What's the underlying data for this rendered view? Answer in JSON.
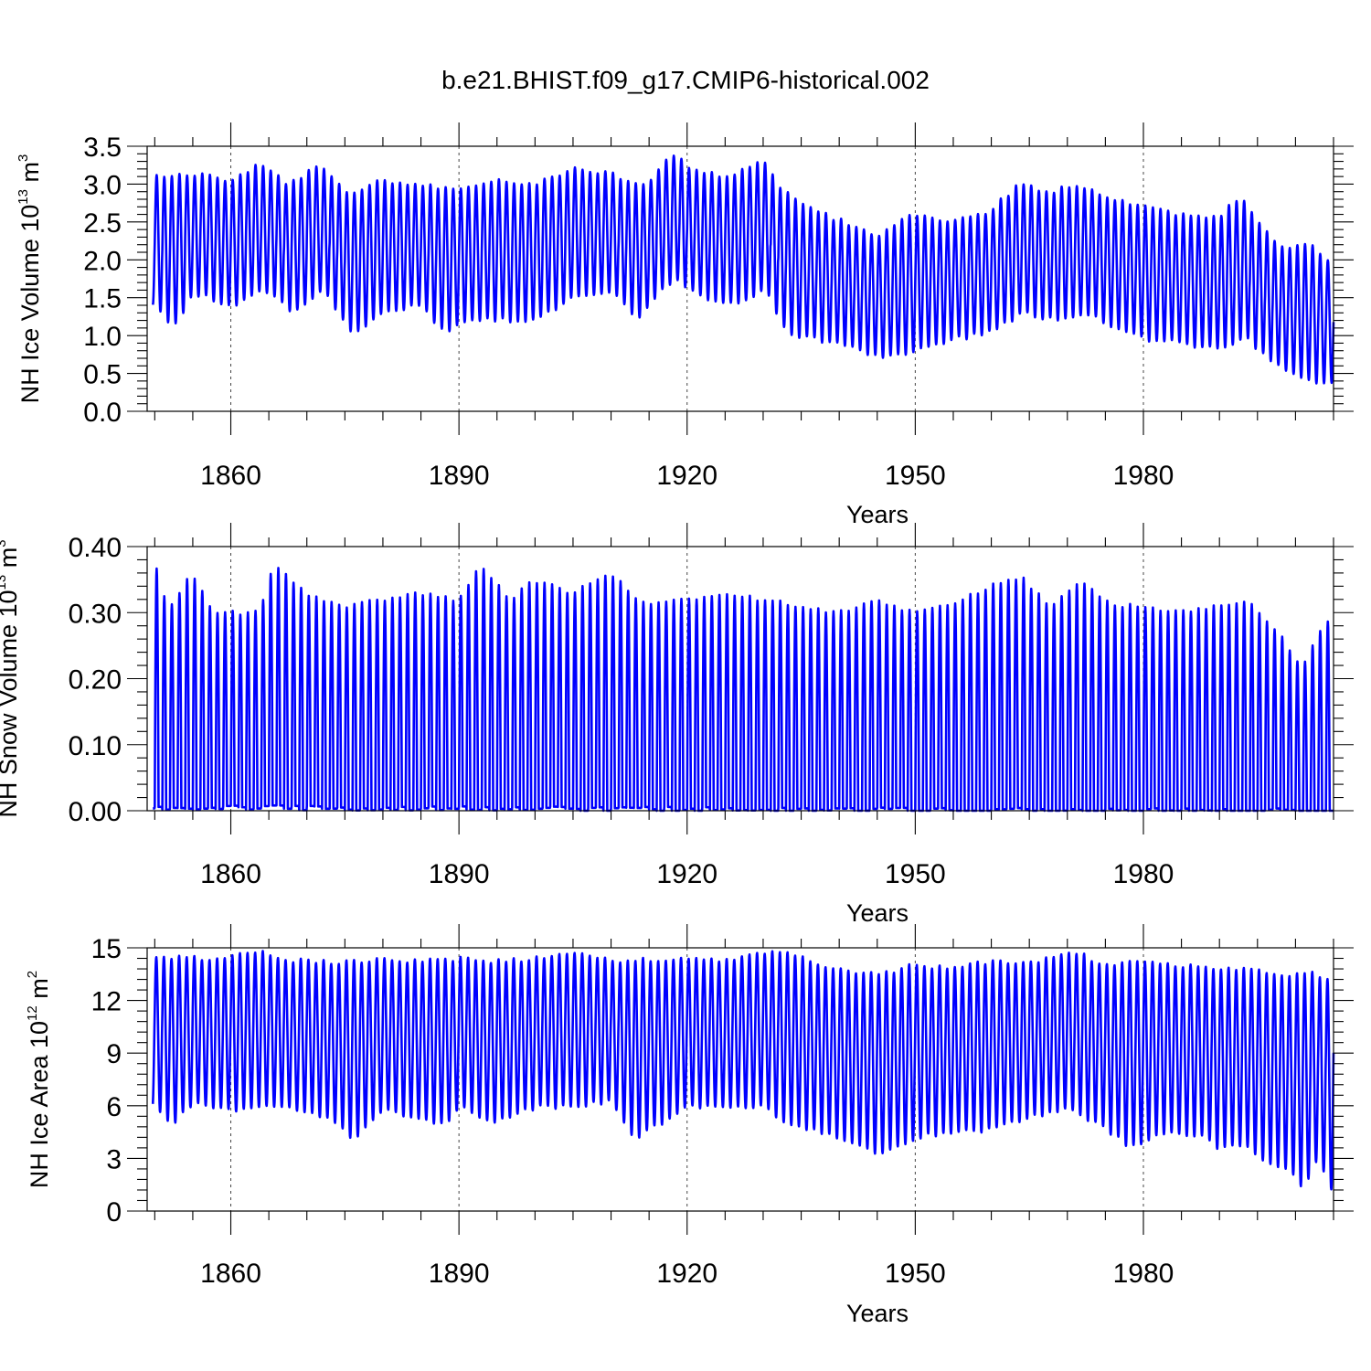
{
  "title": "b.e21.BHIST.f09_g17.CMIP6-historical.002",
  "colors": {
    "line": "#0000ff",
    "axis": "#000000"
  },
  "chart_data": [
    {
      "type": "line",
      "id": "p1",
      "ylabel": {
        "base": "NH Ice Volume 10",
        "exp1": "13",
        "mid": " m",
        "exp2": "3"
      },
      "xlabel": "Years",
      "xlim": [
        1849,
        2005
      ],
      "ylim": [
        0,
        3.5
      ],
      "xticks": [
        1860,
        1890,
        1920,
        1950,
        1980
      ],
      "xtick_labels": [
        "1860",
        "1890",
        "1920",
        "1950",
        "1980"
      ],
      "yticks": [
        0,
        0.5,
        1.0,
        1.5,
        2.0,
        2.5,
        3.0,
        3.5
      ],
      "ytick_labels": [
        "0.0",
        "0.5",
        "1.0",
        "1.5",
        "2.0",
        "2.5",
        "3.0",
        "3.5"
      ],
      "grid": "vertical dashed at major x ticks",
      "series": [
        {
          "seasonal": "annual max in spring, min in autumn",
          "annual_max_keypoints": [
            [
              1850,
              3.1
            ],
            [
              1855,
              3.15
            ],
            [
              1860,
              3.05
            ],
            [
              1864,
              3.25
            ],
            [
              1868,
              3.0
            ],
            [
              1872,
              3.25
            ],
            [
              1876,
              2.85
            ],
            [
              1880,
              3.05
            ],
            [
              1885,
              3.0
            ],
            [
              1890,
              2.9
            ],
            [
              1895,
              3.05
            ],
            [
              1900,
              3.0
            ],
            [
              1905,
              3.2
            ],
            [
              1910,
              3.15
            ],
            [
              1915,
              2.95
            ],
            [
              1918,
              3.4
            ],
            [
              1922,
              3.15
            ],
            [
              1926,
              3.1
            ],
            [
              1930,
              3.35
            ],
            [
              1933,
              2.9
            ],
            [
              1937,
              2.65
            ],
            [
              1941,
              2.5
            ],
            [
              1945,
              2.3
            ],
            [
              1950,
              2.6
            ],
            [
              1955,
              2.5
            ],
            [
              1960,
              2.65
            ],
            [
              1964,
              3.0
            ],
            [
              1968,
              2.9
            ],
            [
              1972,
              3.0
            ],
            [
              1976,
              2.8
            ],
            [
              1980,
              2.7
            ],
            [
              1985,
              2.6
            ],
            [
              1990,
              2.55
            ],
            [
              1993,
              2.85
            ],
            [
              1996,
              2.4
            ],
            [
              1999,
              2.1
            ],
            [
              2002,
              2.25
            ],
            [
              2004,
              2.0
            ]
          ],
          "annual_min_keypoints": [
            [
              1850,
              1.4
            ],
            [
              1852,
              1.1
            ],
            [
              1855,
              1.55
            ],
            [
              1860,
              1.4
            ],
            [
              1864,
              1.6
            ],
            [
              1868,
              1.3
            ],
            [
              1872,
              1.6
            ],
            [
              1876,
              1.0
            ],
            [
              1880,
              1.3
            ],
            [
              1885,
              1.4
            ],
            [
              1888,
              1.0
            ],
            [
              1890,
              1.2
            ],
            [
              1895,
              1.2
            ],
            [
              1900,
              1.2
            ],
            [
              1905,
              1.5
            ],
            [
              1910,
              1.6
            ],
            [
              1913,
              1.2
            ],
            [
              1918,
              1.75
            ],
            [
              1922,
              1.5
            ],
            [
              1926,
              1.4
            ],
            [
              1930,
              1.6
            ],
            [
              1933,
              1.0
            ],
            [
              1937,
              0.95
            ],
            [
              1941,
              0.85
            ],
            [
              1945,
              0.7
            ],
            [
              1950,
              0.8
            ],
            [
              1955,
              0.95
            ],
            [
              1960,
              1.05
            ],
            [
              1964,
              1.3
            ],
            [
              1968,
              1.2
            ],
            [
              1972,
              1.3
            ],
            [
              1976,
              1.1
            ],
            [
              1980,
              0.95
            ],
            [
              1985,
              0.9
            ],
            [
              1990,
              0.8
            ],
            [
              1993,
              1.0
            ],
            [
              1996,
              0.7
            ],
            [
              1999,
              0.5
            ],
            [
              2002,
              0.4
            ],
            [
              2004,
              0.35
            ]
          ]
        }
      ]
    },
    {
      "type": "line",
      "id": "p2",
      "ylabel": {
        "base": "NH Snow Volume 10",
        "exp1": "13",
        "mid": " m",
        "exp2": "3"
      },
      "xlabel": "Years",
      "xlim": [
        1849,
        2005
      ],
      "ylim": [
        0,
        0.4
      ],
      "xticks": [
        1860,
        1890,
        1920,
        1950,
        1980
      ],
      "xtick_labels": [
        "1860",
        "1890",
        "1920",
        "1950",
        "1980"
      ],
      "yticks": [
        0,
        0.1,
        0.2,
        0.3,
        0.4
      ],
      "ytick_labels": [
        "0.00",
        "0.10",
        "0.20",
        "0.30",
        "0.40"
      ],
      "grid": "vertical dashed at major x ticks",
      "series": [
        {
          "seasonal": "annual max in spring, min near zero in summer",
          "annual_max_keypoints": [
            [
              1850,
              0.385
            ],
            [
              1852,
              0.3
            ],
            [
              1855,
              0.36
            ],
            [
              1858,
              0.3
            ],
            [
              1860,
              0.3
            ],
            [
              1864,
              0.3
            ],
            [
              1866,
              0.375
            ],
            [
              1870,
              0.33
            ],
            [
              1875,
              0.31
            ],
            [
              1880,
              0.32
            ],
            [
              1885,
              0.33
            ],
            [
              1890,
              0.32
            ],
            [
              1893,
              0.37
            ],
            [
              1897,
              0.32
            ],
            [
              1900,
              0.35
            ],
            [
              1905,
              0.33
            ],
            [
              1910,
              0.36
            ],
            [
              1915,
              0.31
            ],
            [
              1920,
              0.32
            ],
            [
              1925,
              0.33
            ],
            [
              1930,
              0.32
            ],
            [
              1935,
              0.31
            ],
            [
              1940,
              0.3
            ],
            [
              1945,
              0.32
            ],
            [
              1950,
              0.3
            ],
            [
              1955,
              0.31
            ],
            [
              1960,
              0.34
            ],
            [
              1964,
              0.355
            ],
            [
              1968,
              0.31
            ],
            [
              1972,
              0.35
            ],
            [
              1976,
              0.31
            ],
            [
              1980,
              0.31
            ],
            [
              1985,
              0.3
            ],
            [
              1990,
              0.31
            ],
            [
              1994,
              0.32
            ],
            [
              1998,
              0.27
            ],
            [
              2001,
              0.215
            ],
            [
              2003,
              0.26
            ],
            [
              2004,
              0.285
            ]
          ],
          "annual_min_keypoints": [
            [
              1850,
              0.005
            ],
            [
              1900,
              0.003
            ],
            [
              1950,
              0.001
            ],
            [
              2004,
              0.0
            ]
          ]
        }
      ]
    },
    {
      "type": "line",
      "id": "p3",
      "ylabel": {
        "base": "NH Ice Area 10",
        "exp1": "12",
        "mid": " m",
        "exp2": "2"
      },
      "xlabel": "Years",
      "xlim": [
        1849,
        2005
      ],
      "ylim": [
        0,
        15
      ],
      "xticks": [
        1860,
        1890,
        1920,
        1950,
        1980
      ],
      "xtick_labels": [
        "1860",
        "1890",
        "1920",
        "1950",
        "1980"
      ],
      "yticks": [
        0,
        3,
        6,
        9,
        12,
        15
      ],
      "ytick_labels": [
        "0",
        "3",
        "6",
        "9",
        "12",
        "15"
      ],
      "grid": "vertical dashed at major x ticks",
      "series": [
        {
          "seasonal": "annual max in late winter, min in late summer",
          "annual_max_keypoints": [
            [
              1850,
              14.5
            ],
            [
              1855,
              14.4
            ],
            [
              1860,
              14.4
            ],
            [
              1863,
              14.9
            ],
            [
              1868,
              14.3
            ],
            [
              1875,
              14.2
            ],
            [
              1880,
              14.3
            ],
            [
              1885,
              14.2
            ],
            [
              1890,
              14.4
            ],
            [
              1895,
              14.2
            ],
            [
              1900,
              14.4
            ],
            [
              1906,
              14.6
            ],
            [
              1910,
              14.3
            ],
            [
              1915,
              14.3
            ],
            [
              1920,
              14.4
            ],
            [
              1925,
              14.3
            ],
            [
              1929,
              14.7
            ],
            [
              1934,
              14.7
            ],
            [
              1938,
              14.0
            ],
            [
              1942,
              13.7
            ],
            [
              1946,
              13.5
            ],
            [
              1950,
              14.0
            ],
            [
              1955,
              13.9
            ],
            [
              1960,
              14.2
            ],
            [
              1965,
              14.1
            ],
            [
              1971,
              14.8
            ],
            [
              1975,
              14.1
            ],
            [
              1980,
              14.2
            ],
            [
              1985,
              14.0
            ],
            [
              1990,
              13.9
            ],
            [
              1995,
              13.7
            ],
            [
              1999,
              13.3
            ],
            [
              2002,
              13.7
            ],
            [
              2004,
              13.2
            ]
          ],
          "annual_min_keypoints": [
            [
              1850,
              6.0
            ],
            [
              1852,
              4.8
            ],
            [
              1855,
              6.2
            ],
            [
              1860,
              5.7
            ],
            [
              1865,
              6.0
            ],
            [
              1870,
              5.6
            ],
            [
              1874,
              5.0
            ],
            [
              1876,
              4.0
            ],
            [
              1880,
              5.8
            ],
            [
              1888,
              4.9
            ],
            [
              1890,
              6.0
            ],
            [
              1894,
              5.0
            ],
            [
              1900,
              5.9
            ],
            [
              1905,
              6.0
            ],
            [
              1910,
              6.2
            ],
            [
              1913,
              4.1
            ],
            [
              1920,
              5.9
            ],
            [
              1925,
              6.0
            ],
            [
              1930,
              5.9
            ],
            [
              1933,
              4.8
            ],
            [
              1937,
              4.5
            ],
            [
              1941,
              3.9
            ],
            [
              1945,
              3.3
            ],
            [
              1950,
              4.2
            ],
            [
              1955,
              4.5
            ],
            [
              1960,
              4.6
            ],
            [
              1965,
              5.3
            ],
            [
              1970,
              5.8
            ],
            [
              1975,
              4.6
            ],
            [
              1978,
              3.6
            ],
            [
              1982,
              4.5
            ],
            [
              1987,
              4.3
            ],
            [
              1990,
              3.5
            ],
            [
              1993,
              3.8
            ],
            [
              1996,
              2.8
            ],
            [
              1999,
              2.2
            ],
            [
              2001,
              1.2
            ],
            [
              2003,
              3.3
            ],
            [
              2004,
              1.2
            ]
          ]
        }
      ]
    }
  ]
}
